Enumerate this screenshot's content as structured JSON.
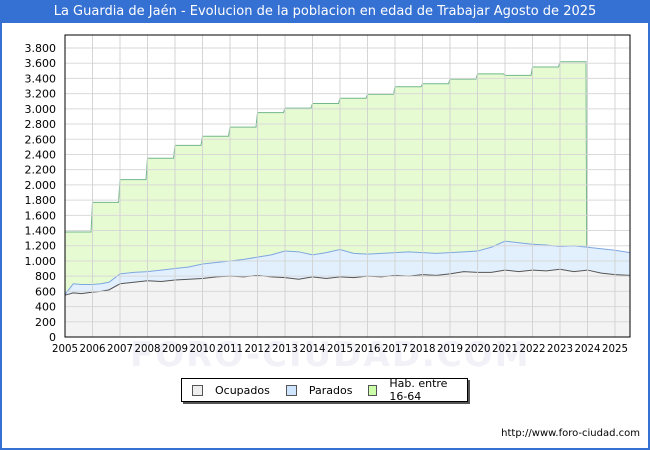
{
  "header": {
    "title": "La Guardia de Jaén - Evolucion de la poblacion en edad de Trabajar Agosto de 2025"
  },
  "footer": {
    "url": "http://www.foro-ciudad.com"
  },
  "watermark": "FORO-CIUDAD.COM",
  "legend": [
    {
      "label": "Ocupados",
      "color": "#eeeeee"
    },
    {
      "label": "Parados",
      "color": "#cfe5ff"
    },
    {
      "label": "Hab. entre 16-64",
      "color": "#ccffaa"
    }
  ],
  "colors": {
    "ocupados_fill": "#f3f3f3",
    "ocupados_line": "#555555",
    "parados_fill": "#e2effd",
    "parados_line": "#7da7e0",
    "hab_fill": "#e7fbd3",
    "hab_line": "#72b88a"
  },
  "chart_data": {
    "type": "area",
    "title": "La Guardia de Jaén - Evolucion de la poblacion en edad de Trabajar Agosto de 2025",
    "xlabel": "",
    "ylabel": "",
    "x_ticks": [
      "2005",
      "2006",
      "2007",
      "2008",
      "2009",
      "2010",
      "2011",
      "2012",
      "2013",
      "2014",
      "2015",
      "2016",
      "2017",
      "2018",
      "2019",
      "2020",
      "2021",
      "2022",
      "2023",
      "2024",
      "2025"
    ],
    "y_ticks": [
      "0",
      "200",
      "400",
      "600",
      "800",
      "1.000",
      "1.200",
      "1.400",
      "1.600",
      "1.800",
      "2.000",
      "2.200",
      "2.400",
      "2.600",
      "2.800",
      "3.000",
      "3.200",
      "3.400",
      "3.600",
      "3.800"
    ],
    "ylim": [
      0,
      3900
    ],
    "xlim": [
      2005,
      2025.6
    ],
    "grid": true,
    "legend_position": "bottom",
    "series": [
      {
        "name": "Hab. entre 16-64",
        "type": "step",
        "x": [
          2005,
          2006,
          2007,
          2008,
          2009,
          2010,
          2011,
          2012,
          2013,
          2014,
          2015,
          2016,
          2017,
          2018,
          2019,
          2020,
          2021,
          2022,
          2023,
          2024
        ],
        "values": [
          1380,
          1770,
          2070,
          2350,
          2520,
          2640,
          2760,
          2950,
          3010,
          3070,
          3140,
          3190,
          3290,
          3330,
          3390,
          3460,
          3440,
          3550,
          3620,
          0
        ]
      },
      {
        "name": "Parados",
        "note": "stacked total (Ocupados + Parados)",
        "x": [
          2005,
          2005.3,
          2005.6,
          2006,
          2006.3,
          2006.6,
          2007,
          2007.5,
          2008,
          2008.5,
          2009,
          2009.5,
          2010,
          2010.5,
          2011,
          2011.5,
          2012,
          2012.5,
          2013,
          2013.5,
          2014,
          2014.5,
          2015,
          2015.5,
          2016,
          2016.5,
          2017,
          2017.5,
          2018,
          2018.5,
          2019,
          2019.5,
          2020,
          2020.5,
          2021,
          2021.5,
          2022,
          2022.5,
          2023,
          2023.5,
          2024,
          2024.5,
          2025,
          2025.6
        ],
        "values": [
          560,
          700,
          690,
          690,
          700,
          720,
          830,
          850,
          860,
          880,
          900,
          920,
          960,
          980,
          1000,
          1020,
          1050,
          1080,
          1130,
          1120,
          1080,
          1110,
          1150,
          1100,
          1090,
          1100,
          1110,
          1120,
          1110,
          1100,
          1110,
          1120,
          1130,
          1180,
          1260,
          1240,
          1220,
          1210,
          1190,
          1200,
          1180,
          1160,
          1140,
          1110
        ]
      },
      {
        "name": "Ocupados",
        "x": [
          2005,
          2005.3,
          2005.6,
          2006,
          2006.3,
          2006.6,
          2007,
          2007.5,
          2008,
          2008.5,
          2009,
          2009.5,
          2010,
          2010.5,
          2011,
          2011.5,
          2012,
          2012.5,
          2013,
          2013.5,
          2014,
          2014.5,
          2015,
          2015.5,
          2016,
          2016.5,
          2017,
          2017.5,
          2018,
          2018.5,
          2019,
          2019.5,
          2020,
          2020.5,
          2021,
          2021.5,
          2022,
          2022.5,
          2023,
          2023.5,
          2024,
          2024.5,
          2025,
          2025.6
        ],
        "values": [
          550,
          580,
          570,
          590,
          600,
          620,
          700,
          720,
          740,
          730,
          750,
          760,
          770,
          790,
          800,
          790,
          810,
          790,
          780,
          760,
          790,
          770,
          790,
          780,
          800,
          790,
          810,
          800,
          820,
          810,
          830,
          860,
          850,
          850,
          880,
          860,
          880,
          870,
          890,
          860,
          880,
          840,
          820,
          810
        ]
      }
    ]
  }
}
